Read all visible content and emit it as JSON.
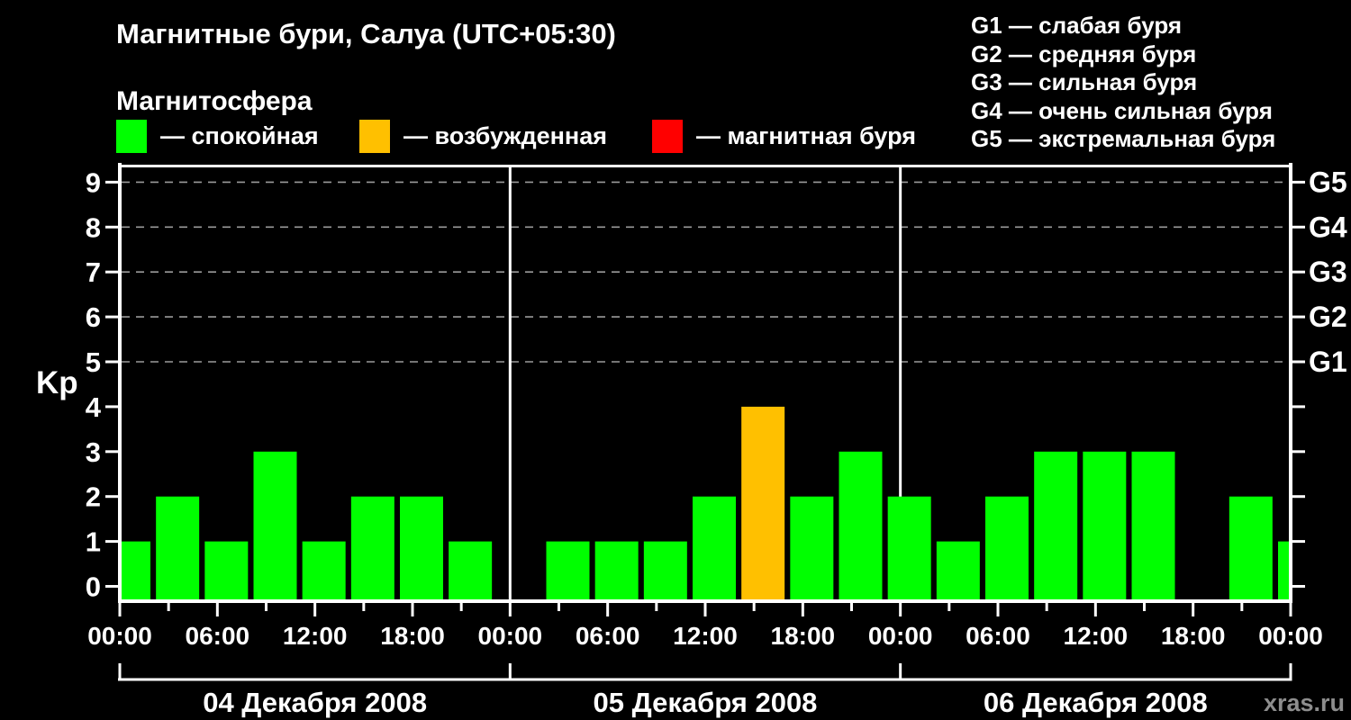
{
  "page": {
    "background": "#000000"
  },
  "header": {
    "title": "Магнитные бури, Салуа (UTC+05:30)",
    "subtitle": "Магнитосфера"
  },
  "status_legend": {
    "items": [
      {
        "name": "quiet",
        "label": "— спокойная",
        "color": "#00ff00"
      },
      {
        "name": "unsettled",
        "label": "— возбужденная",
        "color": "#ffc000"
      },
      {
        "name": "storm",
        "label": "— магнитная буря",
        "color": "#ff0000"
      }
    ]
  },
  "g_scale_legend": {
    "items": [
      "G1 — слабая буря",
      "G2 — средняя буря",
      "G3 — сильная буря",
      "G4 — очень сильная буря",
      "G5 — экстремальная буря"
    ]
  },
  "watermark": "xras.ru",
  "chart_data": {
    "type": "bar",
    "title": "Магнитные бури, Салуа (UTC+05:30)",
    "ylabel": "Kp",
    "yticks": [
      0,
      1,
      2,
      3,
      4,
      5,
      6,
      7,
      8,
      9
    ],
    "ylim": [
      0,
      9.4
    ],
    "grid": "dashed horizontal at Kp 5-9",
    "grid_levels": [
      5,
      6,
      7,
      8,
      9
    ],
    "right_axis_labels": [
      {
        "level": 5,
        "label": "G1"
      },
      {
        "level": 6,
        "label": "G2"
      },
      {
        "level": 7,
        "label": "G3"
      },
      {
        "level": 8,
        "label": "G4"
      },
      {
        "level": 9,
        "label": "G5"
      }
    ],
    "hours_per_bar": 3,
    "x_time_ticks": [
      "00:00",
      "06:00",
      "12:00",
      "18:00"
    ],
    "x_final_tick": "00:00",
    "days": [
      {
        "date": "04 Декабря 2008",
        "values": [
          1,
          2,
          1,
          3,
          1,
          2,
          2,
          1
        ]
      },
      {
        "date": "05 Декабря 2008",
        "values": [
          null,
          1,
          1,
          1,
          2,
          4,
          2,
          3
        ]
      },
      {
        "date": "06 Декабря 2008",
        "values": [
          2,
          1,
          2,
          3,
          3,
          3,
          null,
          2
        ]
      }
    ],
    "next_day_partial_value": 1,
    "colors": {
      "quiet": "#00ff00",
      "unsettled": "#ffc000",
      "storm": "#ff0000"
    },
    "color_rule": "Kp<=3 quiet(green), Kp=4 unsettled(orange), Kp>=5 storm(red)",
    "axis_color": "#ffffff",
    "gridline_color": "#9b9b9b"
  }
}
